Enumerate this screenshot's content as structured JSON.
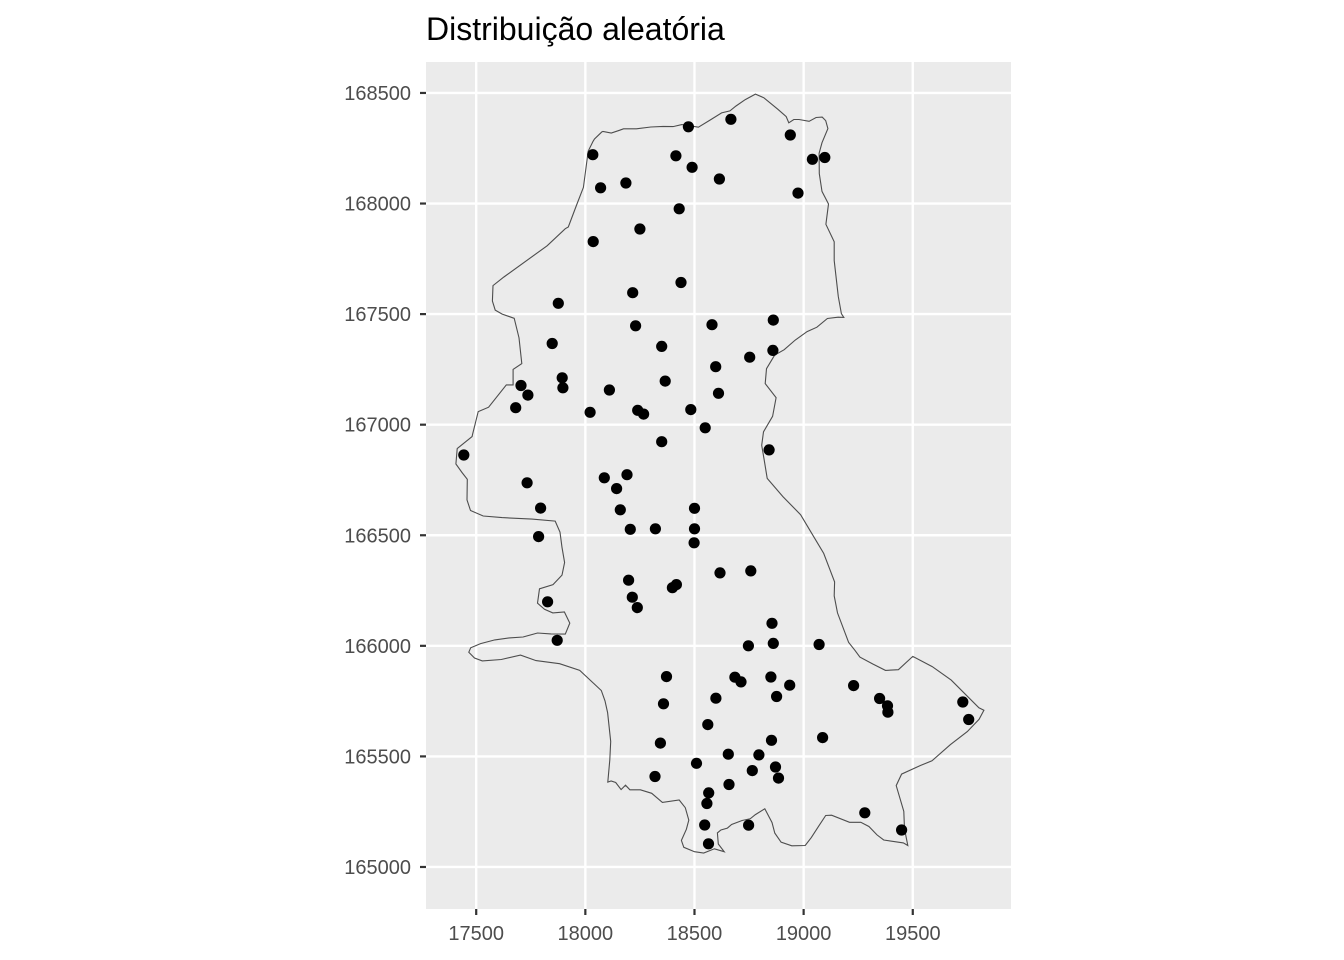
{
  "chart_data": {
    "type": "scatter",
    "title": "Distribuição aleatória",
    "xlabel": "",
    "ylabel": "",
    "xlim": [
      17270,
      19950
    ],
    "ylim": [
      164810,
      168640
    ],
    "x_ticks": [
      17500,
      18000,
      18500,
      19000,
      19500
    ],
    "y_ticks": [
      165000,
      165500,
      166000,
      166500,
      167000,
      167500,
      168000,
      168500
    ],
    "x_tick_labels": [
      "17500",
      "18000",
      "18500",
      "19000",
      "19500"
    ],
    "y_tick_labels": [
      "165000",
      "165500",
      "166000",
      "166500",
      "167000",
      "167500",
      "168000",
      "168500"
    ],
    "grid": true,
    "legend": "none",
    "colors": {
      "panel": "#ebebeb",
      "grid": "#ffffff",
      "point": "#000000",
      "boundary": "#4d4d4d",
      "tick_text": "#4d4d4d"
    },
    "points": [
      {
        "x": 18034,
        "y": 168221
      },
      {
        "x": 18472,
        "y": 168347
      },
      {
        "x": 18667,
        "y": 168381
      },
      {
        "x": 18939,
        "y": 168310
      },
      {
        "x": 19040,
        "y": 168200
      },
      {
        "x": 19097,
        "y": 168208
      },
      {
        "x": 18415,
        "y": 168216
      },
      {
        "x": 18489,
        "y": 168164
      },
      {
        "x": 18070,
        "y": 168071
      },
      {
        "x": 18186,
        "y": 168093
      },
      {
        "x": 18614,
        "y": 168111
      },
      {
        "x": 18974,
        "y": 168047
      },
      {
        "x": 18430,
        "y": 167976
      },
      {
        "x": 18250,
        "y": 167885
      },
      {
        "x": 18036,
        "y": 167828
      },
      {
        "x": 18438,
        "y": 167643
      },
      {
        "x": 18217,
        "y": 167597
      },
      {
        "x": 17876,
        "y": 167549
      },
      {
        "x": 18230,
        "y": 167447
      },
      {
        "x": 18580,
        "y": 167452
      },
      {
        "x": 18861,
        "y": 167473
      },
      {
        "x": 17848,
        "y": 167367
      },
      {
        "x": 18350,
        "y": 167354
      },
      {
        "x": 18859,
        "y": 167336
      },
      {
        "x": 18753,
        "y": 167305
      },
      {
        "x": 18597,
        "y": 167262
      },
      {
        "x": 17894,
        "y": 167212
      },
      {
        "x": 18366,
        "y": 167197
      },
      {
        "x": 17705,
        "y": 167177
      },
      {
        "x": 17897,
        "y": 167167
      },
      {
        "x": 18110,
        "y": 167157
      },
      {
        "x": 17737,
        "y": 167134
      },
      {
        "x": 18610,
        "y": 167142
      },
      {
        "x": 17681,
        "y": 167077
      },
      {
        "x": 18022,
        "y": 167056
      },
      {
        "x": 18240,
        "y": 167065
      },
      {
        "x": 18267,
        "y": 167048
      },
      {
        "x": 18483,
        "y": 167068
      },
      {
        "x": 18549,
        "y": 166986
      },
      {
        "x": 18350,
        "y": 166923
      },
      {
        "x": 18842,
        "y": 166886
      },
      {
        "x": 17443,
        "y": 166863
      },
      {
        "x": 18087,
        "y": 166760
      },
      {
        "x": 18191,
        "y": 166774
      },
      {
        "x": 17733,
        "y": 166737
      },
      {
        "x": 18143,
        "y": 166711
      },
      {
        "x": 17795,
        "y": 166623
      },
      {
        "x": 18160,
        "y": 166615
      },
      {
        "x": 18500,
        "y": 166622
      },
      {
        "x": 18206,
        "y": 166527
      },
      {
        "x": 18321,
        "y": 166529
      },
      {
        "x": 18500,
        "y": 166529
      },
      {
        "x": 17786,
        "y": 166494
      },
      {
        "x": 18498,
        "y": 166466
      },
      {
        "x": 18758,
        "y": 166339
      },
      {
        "x": 18617,
        "y": 166330
      },
      {
        "x": 18198,
        "y": 166297
      },
      {
        "x": 18417,
        "y": 166277
      },
      {
        "x": 18399,
        "y": 166263
      },
      {
        "x": 18215,
        "y": 166220
      },
      {
        "x": 18238,
        "y": 166173
      },
      {
        "x": 17827,
        "y": 166199
      },
      {
        "x": 18855,
        "y": 166102
      },
      {
        "x": 17871,
        "y": 166025
      },
      {
        "x": 18861,
        "y": 166011
      },
      {
        "x": 19071,
        "y": 166006
      },
      {
        "x": 18747,
        "y": 166000
      },
      {
        "x": 18685,
        "y": 165858
      },
      {
        "x": 18850,
        "y": 165859
      },
      {
        "x": 18372,
        "y": 165861
      },
      {
        "x": 18713,
        "y": 165837
      },
      {
        "x": 18936,
        "y": 165822
      },
      {
        "x": 19229,
        "y": 165820
      },
      {
        "x": 18598,
        "y": 165763
      },
      {
        "x": 18876,
        "y": 165771
      },
      {
        "x": 19348,
        "y": 165762
      },
      {
        "x": 19729,
        "y": 165746
      },
      {
        "x": 19384,
        "y": 165729
      },
      {
        "x": 18358,
        "y": 165738
      },
      {
        "x": 19386,
        "y": 165700
      },
      {
        "x": 19756,
        "y": 165667
      },
      {
        "x": 18561,
        "y": 165644
      },
      {
        "x": 19087,
        "y": 165585
      },
      {
        "x": 18853,
        "y": 165573
      },
      {
        "x": 18344,
        "y": 165560
      },
      {
        "x": 18655,
        "y": 165510
      },
      {
        "x": 18795,
        "y": 165507
      },
      {
        "x": 18509,
        "y": 165469
      },
      {
        "x": 18871,
        "y": 165452
      },
      {
        "x": 18765,
        "y": 165436
      },
      {
        "x": 18319,
        "y": 165409
      },
      {
        "x": 18885,
        "y": 165402
      },
      {
        "x": 18658,
        "y": 165373
      },
      {
        "x": 18565,
        "y": 165335
      },
      {
        "x": 18557,
        "y": 165287
      },
      {
        "x": 19280,
        "y": 165245
      },
      {
        "x": 18547,
        "y": 165190
      },
      {
        "x": 18748,
        "y": 165189
      },
      {
        "x": 19449,
        "y": 165167
      },
      {
        "x": 18564,
        "y": 165105
      }
    ],
    "boundary": [
      [
        17413,
        166892
      ],
      [
        17481,
        166946
      ],
      [
        17483,
        166955
      ],
      [
        17509,
        167059
      ],
      [
        17557,
        167079
      ],
      [
        17638,
        167180
      ],
      [
        17669,
        167180
      ],
      [
        17669,
        167250
      ],
      [
        17709,
        167276
      ],
      [
        17696,
        167393
      ],
      [
        17674,
        167481
      ],
      [
        17619,
        167500
      ],
      [
        17587,
        167518
      ],
      [
        17574,
        167559
      ],
      [
        17577,
        167629
      ],
      [
        17627,
        167668
      ],
      [
        17825,
        167809
      ],
      [
        17908,
        167886
      ],
      [
        17922,
        167894
      ],
      [
        17959,
        167991
      ],
      [
        17991,
        168073
      ],
      [
        18013,
        168237
      ],
      [
        18035,
        168281
      ],
      [
        18042,
        168292
      ],
      [
        18067,
        168316
      ],
      [
        18076,
        168324
      ],
      [
        18081,
        168326
      ],
      [
        18119,
        168319
      ],
      [
        18156,
        168331
      ],
      [
        18175,
        168338
      ],
      [
        18234,
        168338
      ],
      [
        18300,
        168346
      ],
      [
        18356,
        168349
      ],
      [
        18402,
        168348
      ],
      [
        18442,
        168357
      ],
      [
        18462,
        168354
      ],
      [
        18518,
        168345
      ],
      [
        18573,
        168378
      ],
      [
        18624,
        168410
      ],
      [
        18662,
        168419
      ],
      [
        18690,
        168441
      ],
      [
        18733,
        168470
      ],
      [
        18779,
        168495
      ],
      [
        18818,
        168478
      ],
      [
        18882,
        168426
      ],
      [
        18920,
        168393
      ],
      [
        18932,
        168365
      ],
      [
        18955,
        168380
      ],
      [
        18979,
        168380
      ],
      [
        19025,
        168372
      ],
      [
        19057,
        168389
      ],
      [
        19085,
        168391
      ],
      [
        19101,
        168375
      ],
      [
        19111,
        168339
      ],
      [
        19084,
        168275
      ],
      [
        19071,
        168227
      ],
      [
        19072,
        168135
      ],
      [
        19084,
        168055
      ],
      [
        19114,
        167998
      ],
      [
        19102,
        167906
      ],
      [
        19140,
        167827
      ],
      [
        19140,
        167742
      ],
      [
        19159,
        167579
      ],
      [
        19173,
        167502
      ],
      [
        19184,
        167485
      ],
      [
        19158,
        167486
      ],
      [
        19109,
        167480
      ],
      [
        19061,
        167441
      ],
      [
        19016,
        167421
      ],
      [
        18962,
        167383
      ],
      [
        18911,
        167339
      ],
      [
        18867,
        167314
      ],
      [
        18830,
        167253
      ],
      [
        18824,
        167186
      ],
      [
        18874,
        167122
      ],
      [
        18858,
        167038
      ],
      [
        18816,
        166968
      ],
      [
        18808,
        166907
      ],
      [
        18819,
        166843
      ],
      [
        18833,
        166757
      ],
      [
        18905,
        166675
      ],
      [
        18986,
        166593
      ],
      [
        19041,
        166502
      ],
      [
        19092,
        166418
      ],
      [
        19120,
        166346
      ],
      [
        19142,
        166289
      ],
      [
        19140,
        166226
      ],
      [
        19155,
        166149
      ],
      [
        19206,
        166016
      ],
      [
        19235,
        165980
      ],
      [
        19258,
        165949
      ],
      [
        19317,
        165918
      ],
      [
        19375,
        165889
      ],
      [
        19434,
        165892
      ],
      [
        19500,
        165952
      ],
      [
        19589,
        165906
      ],
      [
        19676,
        165845
      ],
      [
        19803,
        165720
      ],
      [
        19826,
        165709
      ],
      [
        19804,
        165668
      ],
      [
        19750,
        165612
      ],
      [
        19672,
        165553
      ],
      [
        19588,
        165480
      ],
      [
        19535,
        165459
      ],
      [
        19449,
        165420
      ],
      [
        19424,
        165368
      ],
      [
        19459,
        165252
      ],
      [
        19462,
        165172
      ],
      [
        19477,
        165097
      ],
      [
        19457,
        165109
      ],
      [
        19367,
        165122
      ],
      [
        19336,
        165145
      ],
      [
        19299,
        165183
      ],
      [
        19262,
        165202
      ],
      [
        19210,
        165202
      ],
      [
        19128,
        165234
      ],
      [
        19101,
        165233
      ],
      [
        19070,
        165186
      ],
      [
        19035,
        165133
      ],
      [
        19007,
        165097
      ],
      [
        18946,
        165096
      ],
      [
        18897,
        165112
      ],
      [
        18868,
        165153
      ],
      [
        18855,
        165201
      ],
      [
        18822,
        165263
      ],
      [
        18779,
        165237
      ],
      [
        18755,
        165218
      ],
      [
        18718,
        165210
      ],
      [
        18697,
        165202
      ],
      [
        18670,
        165192
      ],
      [
        18651,
        165176
      ],
      [
        18621,
        165167
      ],
      [
        18605,
        165154
      ],
      [
        18609,
        165104
      ],
      [
        18636,
        165069
      ],
      [
        18591,
        165082
      ],
      [
        18542,
        165063
      ],
      [
        18500,
        165069
      ],
      [
        18451,
        165089
      ],
      [
        18440,
        165120
      ],
      [
        18463,
        165171
      ],
      [
        18474,
        165212
      ],
      [
        18458,
        165268
      ],
      [
        18430,
        165303
      ],
      [
        18353,
        165292
      ],
      [
        18304,
        165333
      ],
      [
        18252,
        165349
      ],
      [
        18204,
        165349
      ],
      [
        18184,
        165370
      ],
      [
        18164,
        165350
      ],
      [
        18139,
        165382
      ],
      [
        18118,
        165389
      ],
      [
        18103,
        165384
      ],
      [
        18112,
        165484
      ],
      [
        18116,
        165568
      ],
      [
        18102,
        165698
      ],
      [
        18090,
        165751
      ],
      [
        18073,
        165798
      ],
      [
        17974,
        165889
      ],
      [
        17882,
        165919
      ],
      [
        17774,
        165933
      ],
      [
        17703,
        165958
      ],
      [
        17615,
        165938
      ],
      [
        17528,
        165932
      ],
      [
        17492,
        165945
      ],
      [
        17466,
        165971
      ],
      [
        17475,
        165991
      ],
      [
        17520,
        166010
      ],
      [
        17585,
        166027
      ],
      [
        17651,
        166036
      ],
      [
        17715,
        166040
      ],
      [
        17781,
        166058
      ],
      [
        17842,
        166054
      ],
      [
        17908,
        166053
      ],
      [
        17929,
        166103
      ],
      [
        17904,
        166153
      ],
      [
        17851,
        166149
      ],
      [
        17813,
        166165
      ],
      [
        17781,
        166193
      ],
      [
        17790,
        166258
      ],
      [
        17852,
        166277
      ],
      [
        17893,
        166320
      ],
      [
        17905,
        166377
      ],
      [
        17893,
        166445
      ],
      [
        17884,
        166514
      ],
      [
        17862,
        166564
      ],
      [
        17755,
        166573
      ],
      [
        17618,
        166580
      ],
      [
        17532,
        166587
      ],
      [
        17474,
        166612
      ],
      [
        17458,
        166660
      ],
      [
        17459,
        166753
      ],
      [
        17435,
        166784
      ],
      [
        17407,
        166822
      ],
      [
        17413,
        166892
      ]
    ]
  }
}
